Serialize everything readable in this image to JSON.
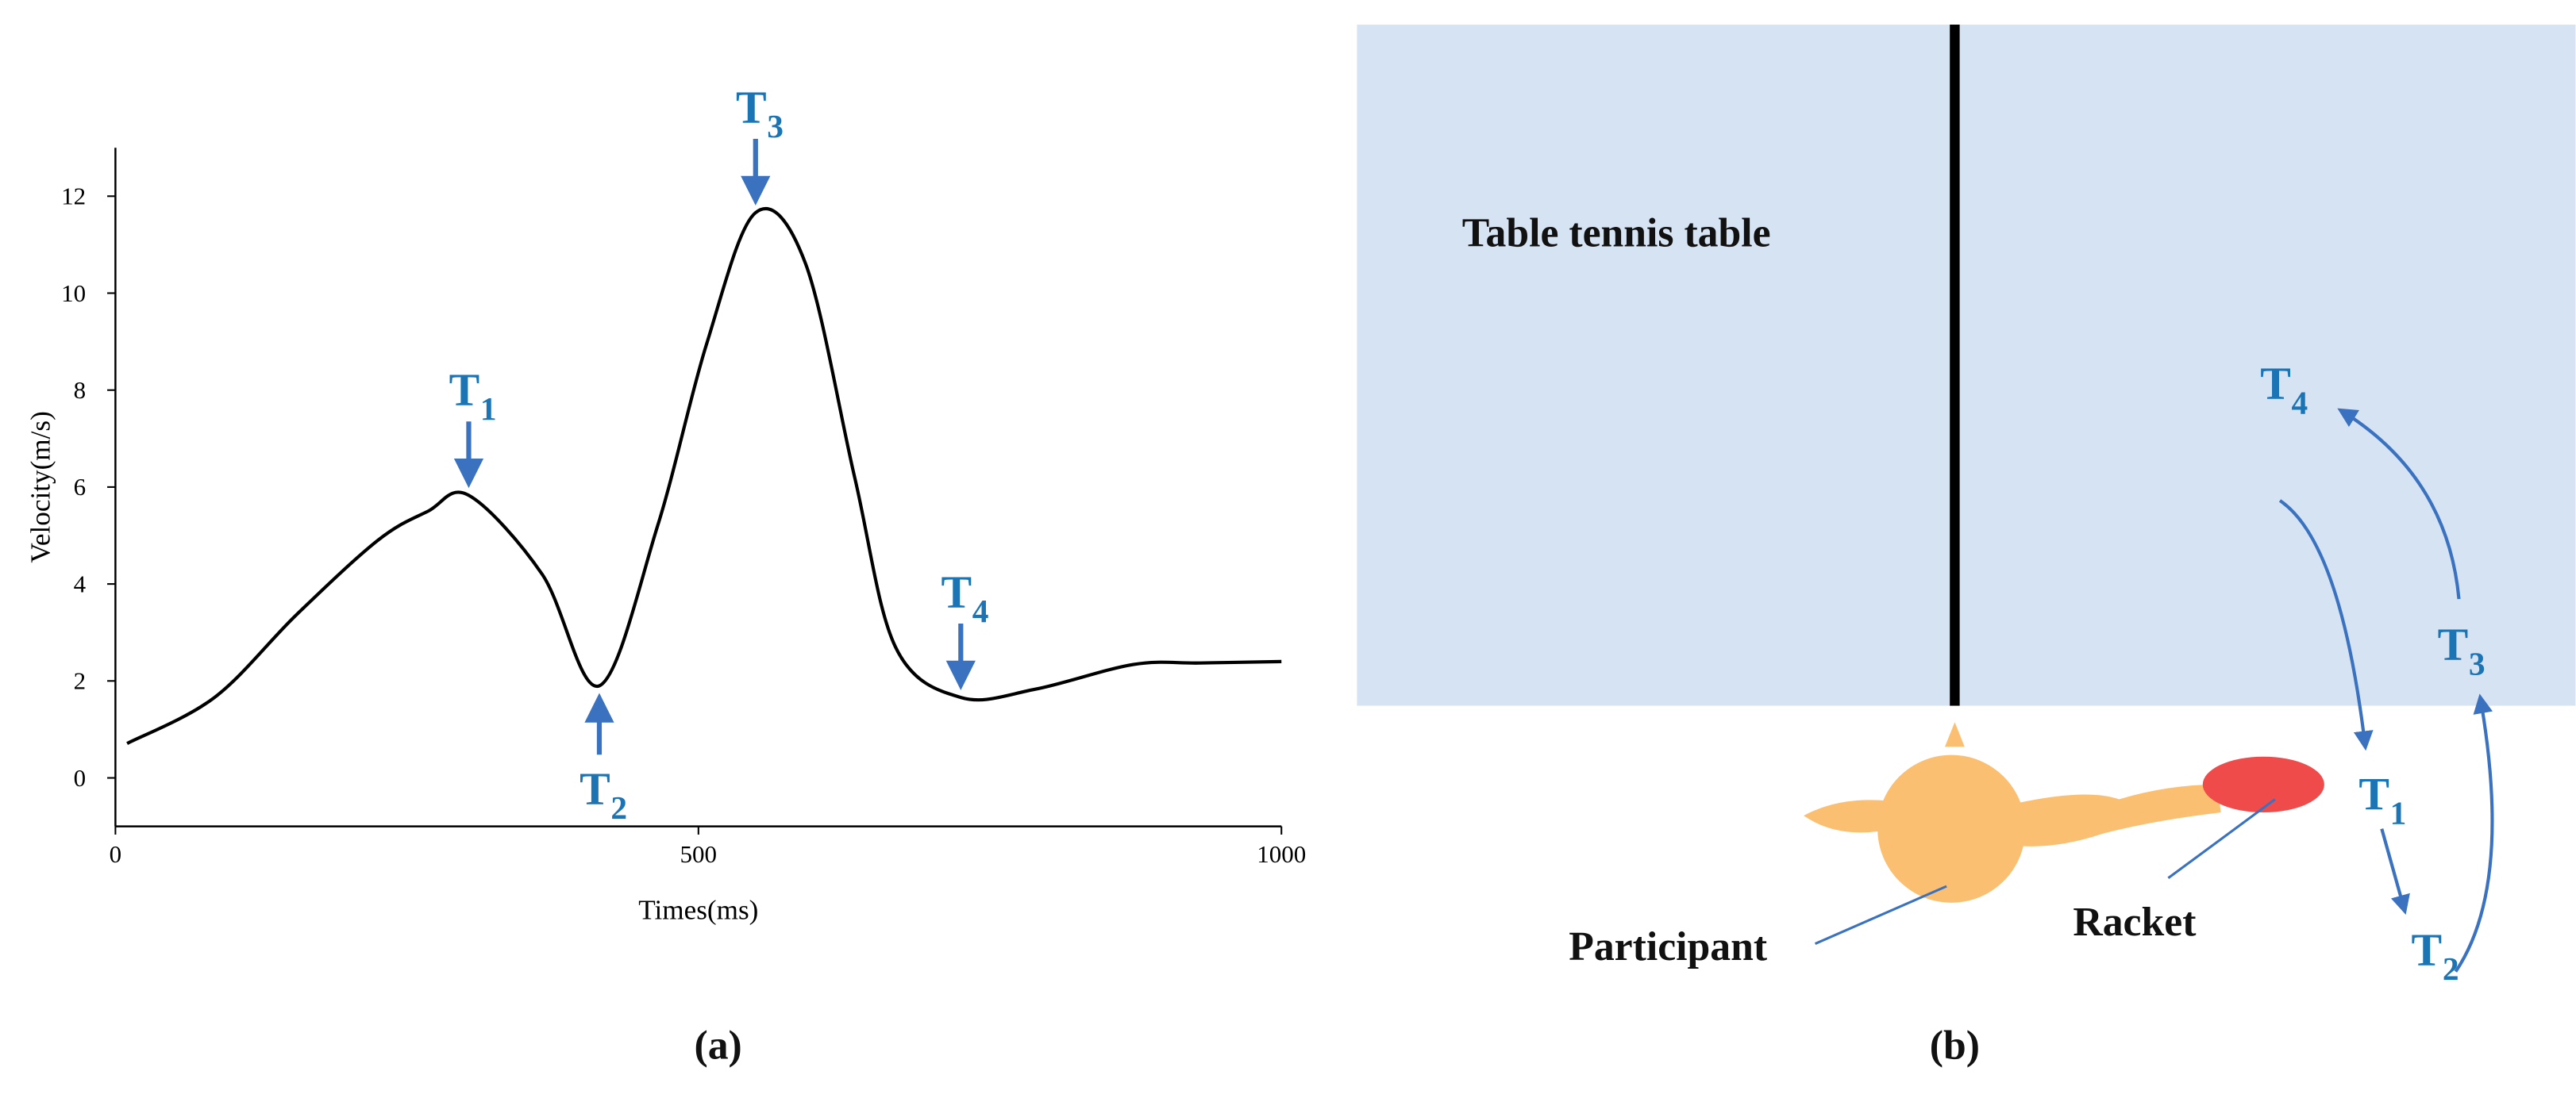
{
  "chart_data": {
    "type": "line",
    "xlabel": "Times(ms)",
    "ylabel": "Velocity(m/s)",
    "caption": "(a)",
    "x": [
      10,
      85,
      155,
      225,
      268,
      303,
      366,
      415,
      465,
      507,
      549,
      592,
      634,
      669,
      725,
      789,
      873,
      930,
      1000
    ],
    "series": [
      {
        "color": "#000000",
        "values": [
          0.71,
          1.66,
          3.36,
          4.9,
          5.5,
          5.83,
          4.2,
          1.9,
          5.2,
          8.95,
          11.66,
          10.6,
          6.2,
          2.7,
          1.66,
          1.83,
          2.34,
          2.37,
          2.4
        ]
      }
    ],
    "xlim": [
      0,
      1000
    ],
    "ylim": [
      -1,
      13
    ],
    "xticks": [
      0,
      500,
      1000
    ],
    "yticks": [
      0,
      2,
      4,
      6,
      8,
      10,
      12
    ],
    "annotations": [
      {
        "base": "T",
        "sub": "1",
        "x": 303,
        "y": 5.83,
        "arrow": "down"
      },
      {
        "base": "T",
        "sub": "2",
        "x": 415,
        "y": 1.9,
        "arrow": "up"
      },
      {
        "base": "T",
        "sub": "3",
        "x": 549,
        "y": 11.66,
        "arrow": "down"
      },
      {
        "base": "T",
        "sub": "4",
        "x": 725,
        "y": 1.66,
        "arrow": "down"
      }
    ]
  },
  "diagram": {
    "caption": "(b)",
    "table_label": "Table tennis table",
    "participant_label": "Participant",
    "racket_label": "Racket",
    "phases": [
      {
        "base": "T",
        "sub": "1"
      },
      {
        "base": "T",
        "sub": "2"
      },
      {
        "base": "T",
        "sub": "3"
      },
      {
        "base": "T",
        "sub": "4"
      }
    ]
  }
}
